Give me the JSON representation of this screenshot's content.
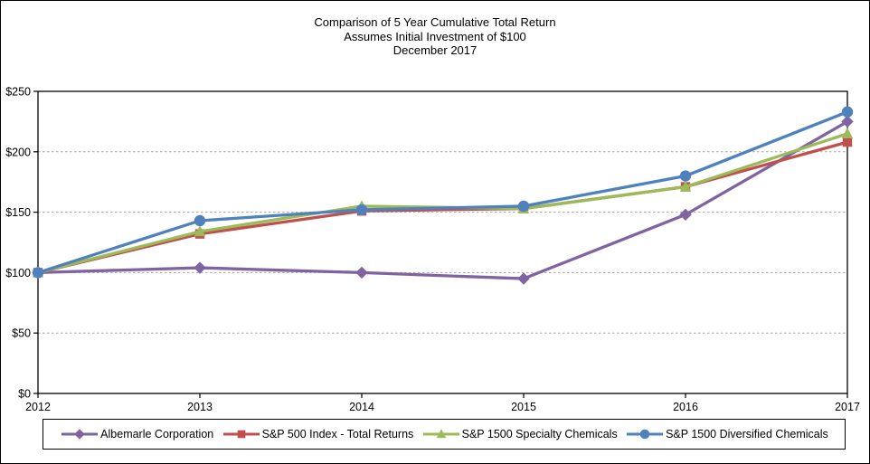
{
  "title": {
    "line1": "Comparison of 5 Year Cumulative Total Return",
    "line2": "Assumes Initial Investment of $100",
    "line3": "December 2017"
  },
  "chart_data": {
    "type": "line",
    "title": "Comparison of 5 Year Cumulative Total Return",
    "subtitle": "Assumes Initial Investment of $100",
    "date_label": "December 2017",
    "x_labels": [
      "2012",
      "2013",
      "2014",
      "2015",
      "2016",
      "2017"
    ],
    "y_ticks": [
      0,
      50,
      100,
      150,
      200,
      250
    ],
    "y_tick_labels": [
      "$0",
      "$50",
      "$100",
      "$150",
      "$200",
      "$250"
    ],
    "ylim": [
      0,
      250
    ],
    "grid": "horizontal-dashed",
    "grid_color": "#a6a6a6",
    "axis_color": "#000000",
    "legend_position": "bottom",
    "series": [
      {
        "name": "Albemarle Corporation",
        "color": "#8064A2",
        "marker": "diamond",
        "values": [
          100,
          104,
          100,
          95,
          148,
          225
        ]
      },
      {
        "name": "S&P 500 Index - Total Returns",
        "color": "#C0504D",
        "marker": "square",
        "values": [
          100,
          132,
          151,
          153,
          171,
          208
        ]
      },
      {
        "name": "S&P 1500 Specialty Chemicals",
        "color": "#9BBB59",
        "marker": "triangle",
        "values": [
          100,
          134,
          155,
          153,
          171,
          215
        ]
      },
      {
        "name": "S&P 1500 Diversified Chemicals",
        "color": "#4F81BD",
        "marker": "circle",
        "values": [
          100,
          143,
          152,
          155,
          180,
          233
        ]
      }
    ]
  }
}
